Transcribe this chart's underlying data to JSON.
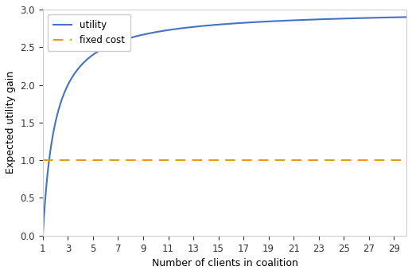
{
  "x_min": 1,
  "x_max": 30,
  "fixed_cost": 1.0,
  "utility_scale": 3.0,
  "utility_color": "#4472c4",
  "fixed_cost_color": "#ed961c",
  "ylabel": "Expected utility gain",
  "xlabel": "Number of clients in coalition",
  "ylim": [
    0.0,
    3.0
  ],
  "yticks": [
    0.0,
    0.5,
    1.0,
    1.5,
    2.0,
    2.5,
    3.0
  ],
  "xtick_positions": [
    1,
    3,
    5,
    7,
    9,
    11,
    13,
    15,
    17,
    19,
    21,
    23,
    25,
    27,
    29
  ],
  "xtick_labels": [
    "1",
    "3",
    "5",
    "7",
    "9",
    "11",
    "13",
    "15",
    "17",
    "19",
    "21",
    "23",
    "25",
    "27",
    "29"
  ],
  "legend_utility": "utility",
  "legend_fixed": "fixed cost",
  "background_color": "#ffffff",
  "linewidth": 1.5
}
